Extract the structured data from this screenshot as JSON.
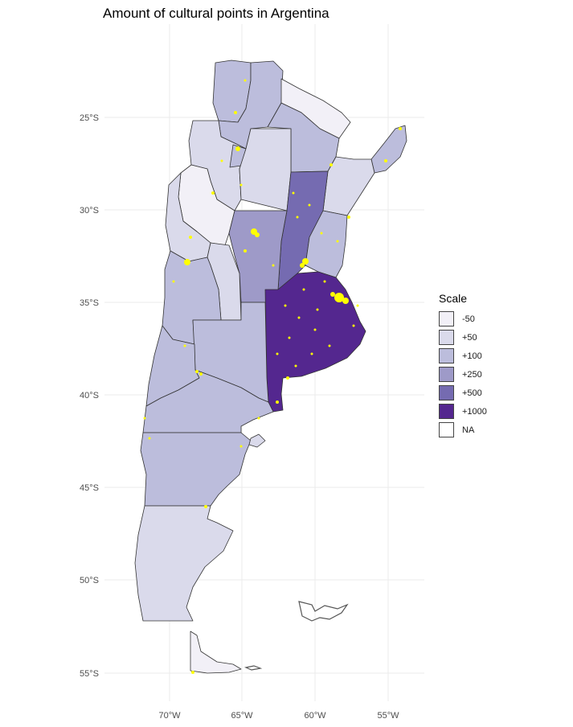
{
  "title": "Amount of cultural points in Argentina",
  "axes": {
    "y_ticks": [
      "25°S",
      "30°S",
      "35°S",
      "40°S",
      "45°S",
      "50°S",
      "55°S"
    ],
    "x_ticks": [
      "70°W",
      "65°W",
      "60°W",
      "55°W"
    ]
  },
  "legend": {
    "title": "Scale",
    "items": [
      {
        "label": "-50",
        "color": "#f2f0f7"
      },
      {
        "label": "+50",
        "color": "#dadaeb"
      },
      {
        "label": "+100",
        "color": "#bcbddc"
      },
      {
        "label": "+250",
        "color": "#9e9ac8"
      },
      {
        "label": "+500",
        "color": "#756bb1"
      },
      {
        "label": "+1000",
        "color": "#54278f"
      },
      {
        "label": "NA",
        "color": "#ffffff"
      }
    ]
  },
  "colors": {
    "points": "#ffff00",
    "grid": "#ebebeb"
  }
}
